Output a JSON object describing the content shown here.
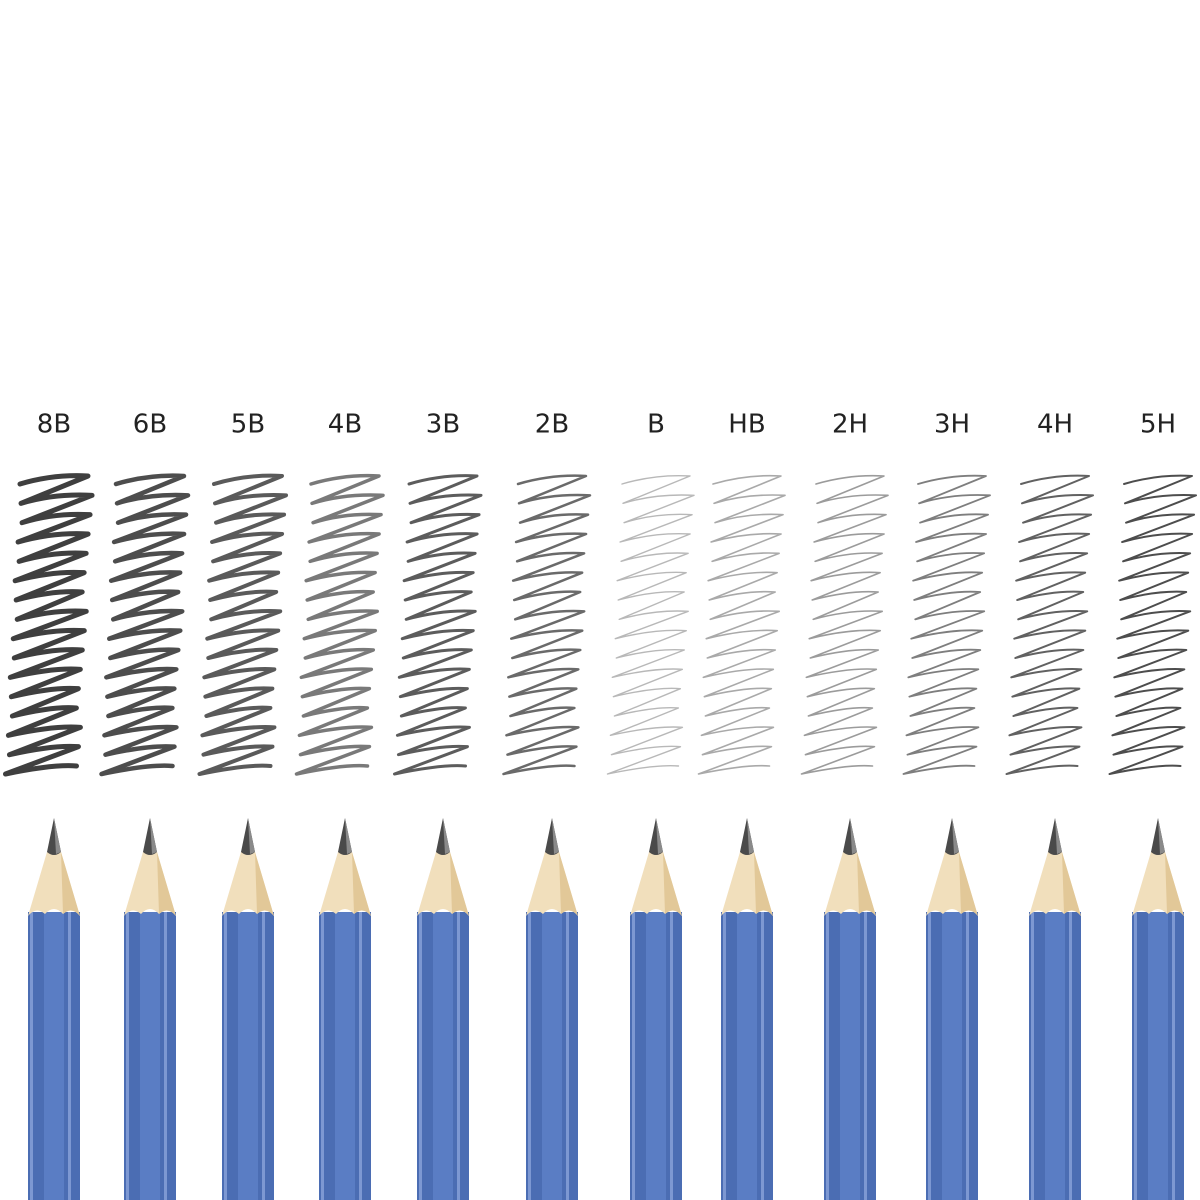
{
  "grades": [
    "8B",
    "6B",
    "5B",
    "4B",
    "3B",
    "2B",
    "B",
    "HB",
    "2H",
    "3H",
    "4H",
    "5H"
  ]
}
